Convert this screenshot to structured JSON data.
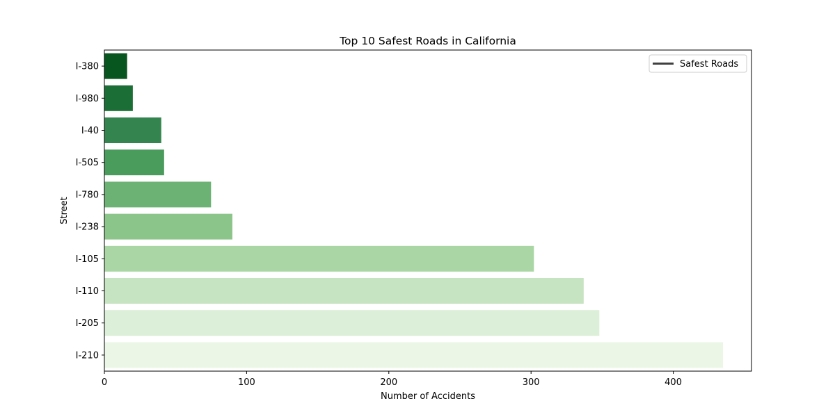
{
  "chart_data": {
    "type": "bar",
    "orientation": "horizontal",
    "title": "Top 10 Safest Roads in California",
    "xlabel": "Number of Accidents",
    "ylabel": "Street",
    "categories": [
      "I-380",
      "I-980",
      "I-40",
      "I-505",
      "I-780",
      "I-238",
      "I-105",
      "I-110",
      "I-205",
      "I-210"
    ],
    "values": [
      16,
      20,
      40,
      42,
      75,
      90,
      302,
      337,
      348,
      435
    ],
    "colors": [
      "#08561f",
      "#1c6e37",
      "#33844e",
      "#4a9c5d",
      "#6cb274",
      "#8cc58a",
      "#aad6a5",
      "#c6e4c1",
      "#dcefd8",
      "#ebf6e7"
    ],
    "xlim": [
      0,
      455
    ],
    "xticks": [
      0,
      100,
      200,
      300,
      400
    ],
    "grid": false,
    "legend": {
      "label": "Safest Roads",
      "placement": "top-right"
    }
  }
}
